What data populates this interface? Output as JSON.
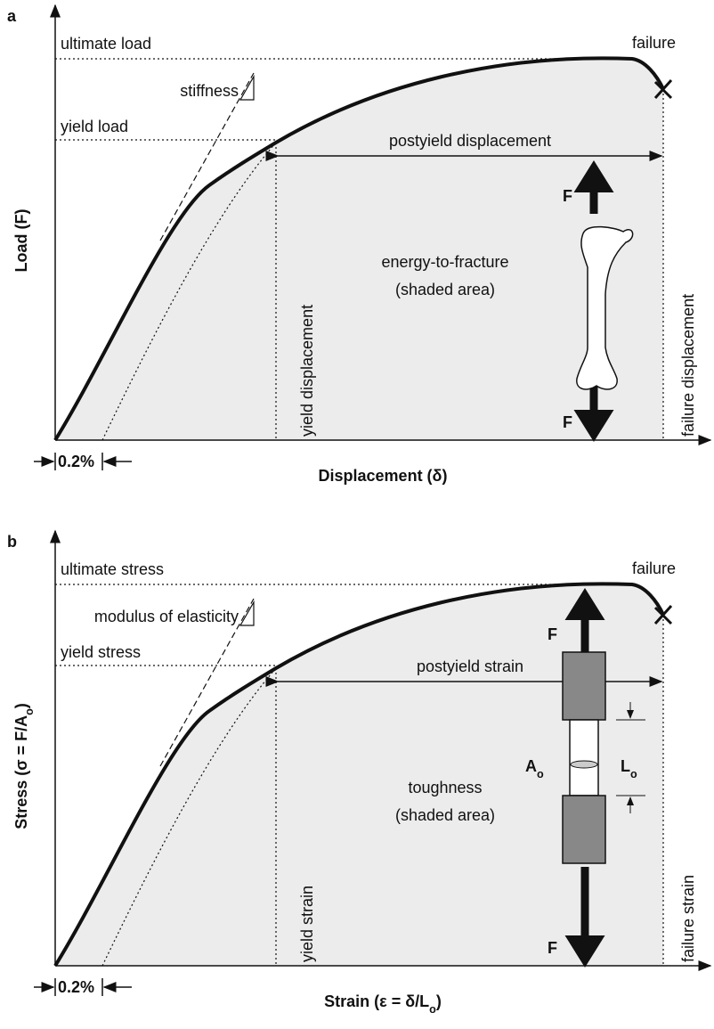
{
  "panels": [
    {
      "label": "a",
      "ultimate": "ultimate load",
      "slope": "stiffness",
      "yield": "yield load",
      "failure": "failure",
      "postyield": "postyield displacement",
      "area": [
        "energy-to-fracture",
        "(shaded area)"
      ],
      "yield_x": "yield displacement",
      "failure_x": "failure displacement",
      "force": "F",
      "y_axis": [
        "Load (F)"
      ],
      "x_axis": [
        "Displacement (δ)"
      ],
      "offset": "0.2%"
    },
    {
      "label": "b",
      "ultimate": "ultimate stress",
      "slope": "modulus of elasticity",
      "yield": "yield stress",
      "failure": "failure",
      "postyield": "postyield strain",
      "area": [
        "toughness",
        "(shaded area)"
      ],
      "yield_x": "yield strain",
      "failure_x": "failure strain",
      "force": "F",
      "y_axis": [
        "Stress (σ = F/A",
        "o",
        ")"
      ],
      "x_axis": [
        "Strain (ε = δ/L",
        "o",
        ")"
      ],
      "offset": "0.2%",
      "area_symbol": [
        "A",
        "o"
      ],
      "length_symbol": [
        "L",
        "o"
      ]
    }
  ]
}
